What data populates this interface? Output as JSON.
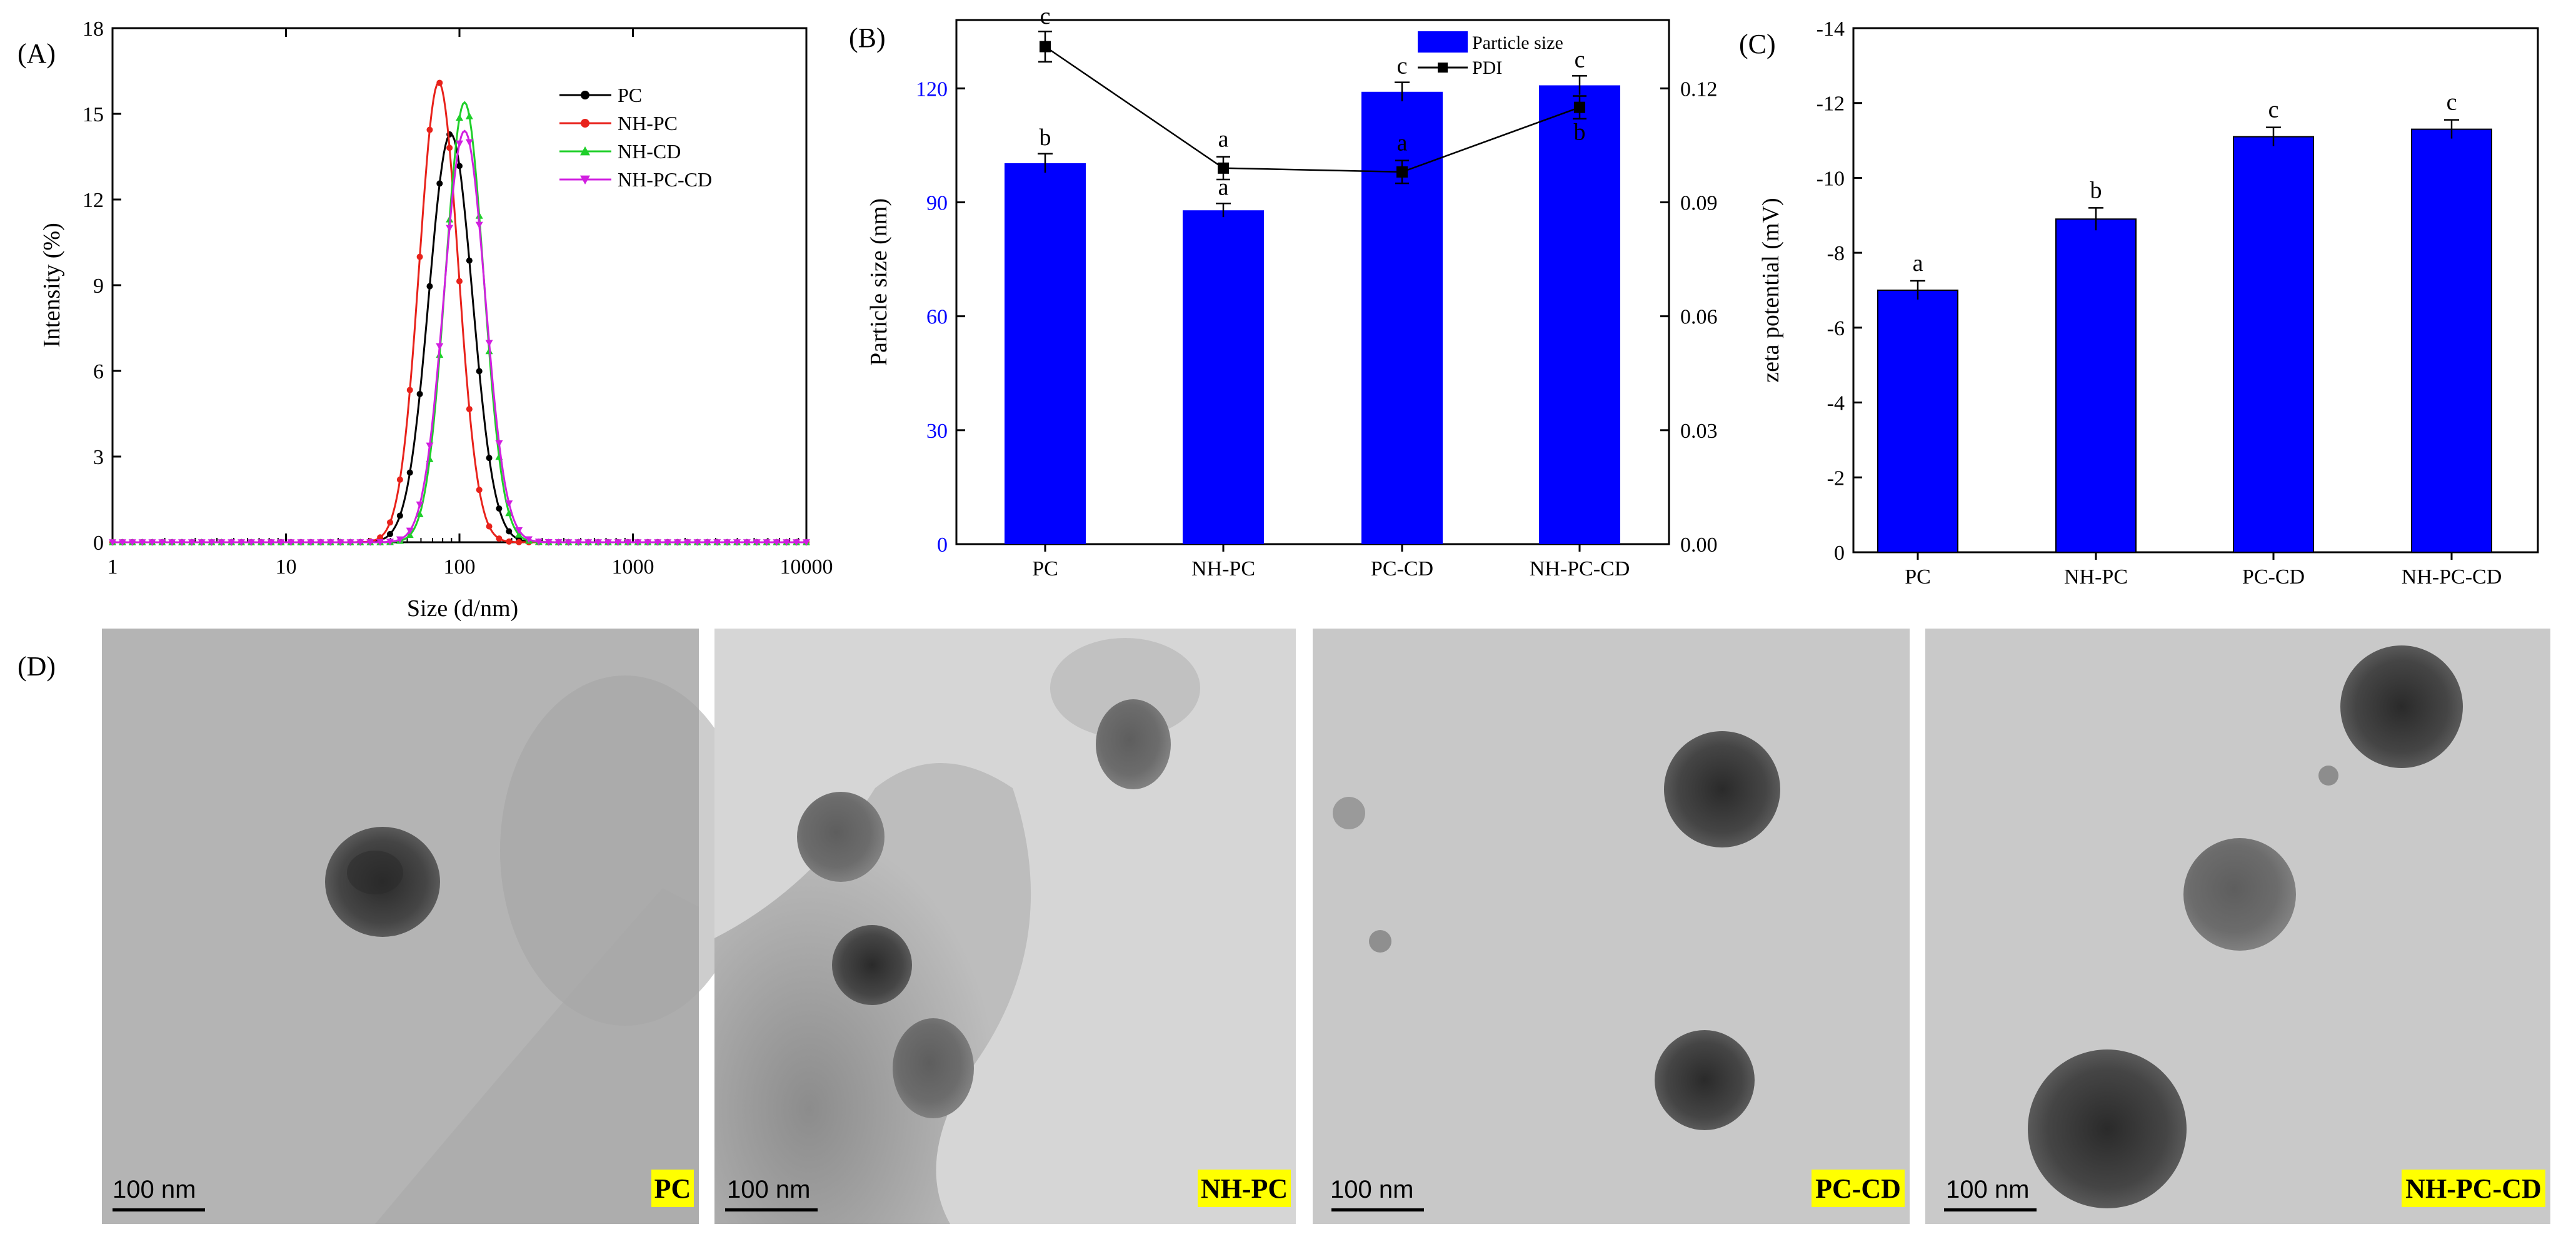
{
  "colors": {
    "PC": "#000000",
    "NH-PC": "#e8221b",
    "NH-CD": "#1fcf2a",
    "NH-PC-CD": "#d11fe0",
    "bar": "#0000ff",
    "axis_blue": "#0000ff",
    "label_highlight": "#ffff00"
  },
  "chart_data": [
    {
      "panel": "(A)",
      "type": "line",
      "xlabel": "Size (d/nm)",
      "ylabel": "Intensity (%)",
      "xscale": "log",
      "xlim": [
        1,
        10000
      ],
      "ylim": [
        0,
        18
      ],
      "xticks": [
        "1",
        "10",
        "100",
        "1000",
        "10000"
      ],
      "yticks": [
        "0",
        "3",
        "6",
        "9",
        "12",
        "15",
        "18"
      ],
      "legend": "top-right",
      "series": [
        {
          "name": "PC",
          "color_key": "PC",
          "marker": "circle",
          "peak_x": 89,
          "peak_y": 14.3,
          "width_log": 0.125
        },
        {
          "name": "NH-PC",
          "color_key": "NH-PC",
          "marker": "circle",
          "peak_x": 76,
          "peak_y": 16.1,
          "width_log": 0.112
        },
        {
          "name": "NH-CD",
          "color_key": "NH-CD",
          "marker": "triangle-up",
          "peak_x": 107,
          "peak_y": 15.4,
          "width_log": 0.11
        },
        {
          "name": "NH-PC-CD",
          "color_key": "NH-PC-CD",
          "marker": "triangle-down",
          "peak_x": 107,
          "peak_y": 14.4,
          "width_log": 0.118
        }
      ]
    },
    {
      "panel": "(B)",
      "type": "bar",
      "categories": [
        "PC",
        "NH-PC",
        "PC-CD",
        "NH-PC-CD"
      ],
      "ylabel": "Particle size (nm)",
      "ylim": [
        0,
        138
      ],
      "yticks": [
        "0",
        "30",
        "60",
        "90",
        "120"
      ],
      "y2lim": [
        0,
        0.138
      ],
      "y2ticks": [
        "0.00",
        "0.03",
        "0.06",
        "0.09",
        "0.12"
      ],
      "legend": "top-right",
      "series": [
        {
          "name": "Particle size",
          "kind": "bar",
          "values": [
            100.3,
            87.9,
            119.1,
            120.8
          ],
          "errors": [
            2.5,
            1.8,
            2.5,
            2.5
          ],
          "letters": [
            "b",
            "a",
            "c",
            "c"
          ]
        },
        {
          "name": "PDI",
          "kind": "line",
          "axis": "right",
          "values": [
            0.131,
            0.099,
            0.098,
            0.115
          ],
          "errors": [
            0.004,
            0.003,
            0.003,
            0.003
          ],
          "letters": [
            "c",
            "a",
            "a",
            "b"
          ]
        }
      ]
    },
    {
      "panel": "(C)",
      "type": "bar",
      "categories": [
        "PC",
        "NH-PC",
        "PC-CD",
        "NH-PC-CD"
      ],
      "ylabel": "zeta potential (mV)",
      "ylim": [
        0,
        -14
      ],
      "yticks": [
        "0",
        "-2",
        "-4",
        "-6",
        "-8",
        "-10",
        "-12",
        "-14"
      ],
      "series": [
        {
          "name": "zeta potential",
          "values": [
            -7.0,
            -8.9,
            -11.1,
            -11.3
          ],
          "errors": [
            0.25,
            0.3,
            0.25,
            0.25
          ],
          "letters": [
            "a",
            "b",
            "c",
            "c"
          ]
        }
      ]
    }
  ],
  "micrographs": {
    "panel": "(D)",
    "images": [
      {
        "label": "PC",
        "scale": "100 nm"
      },
      {
        "label": "NH-PC",
        "scale": "100 nm"
      },
      {
        "label": "PC-CD",
        "scale": "100 nm"
      },
      {
        "label": "NH-PC-CD",
        "scale": "100 nm"
      }
    ]
  }
}
